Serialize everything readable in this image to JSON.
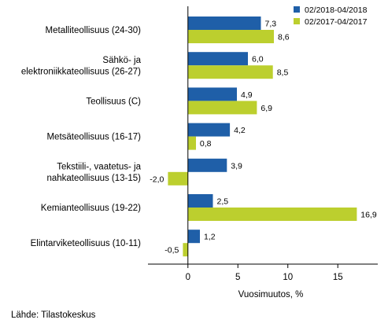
{
  "chart_data": {
    "type": "bar",
    "orientation": "horizontal",
    "categories": [
      [
        "Metalliteollisuus (24-30)"
      ],
      [
        "Sähkö- ja",
        "elektroniikkateollisuus (26-27)"
      ],
      [
        "Teollisuus (C)"
      ],
      [
        "Metsäteollisuus (16-17)"
      ],
      [
        "Tekstiili-, vaatetus- ja",
        "nahkateollisuus (13-15)"
      ],
      [
        "Kemianteollisuus (19-22)"
      ],
      [
        "Elintarviketeollisuus (10-11)"
      ]
    ],
    "series": [
      {
        "name": "02/2018-04/2018",
        "color": "#1f5fa8",
        "values": [
          7.3,
          6.0,
          4.9,
          4.2,
          3.9,
          2.5,
          1.2
        ],
        "value_labels": [
          "7,3",
          "6,0",
          "4,9",
          "4,2",
          "3,9",
          "2,5",
          "1,2"
        ]
      },
      {
        "name": "02/2017-04/2017",
        "color": "#bccf2e",
        "values": [
          8.6,
          8.5,
          6.9,
          0.8,
          -2.0,
          16.9,
          -0.5
        ],
        "value_labels": [
          "8,6",
          "8,5",
          "6,9",
          "0,8",
          "-2,0",
          "16,9",
          "-0,5"
        ]
      }
    ],
    "xlim": [
      -4,
      19
    ],
    "xticks": [
      0,
      5,
      10,
      15
    ],
    "xtick_labels": [
      "0",
      "5",
      "10",
      "15"
    ],
    "xlabel": "Vuosimuutos, %",
    "legend_position": "top-right",
    "grid": false
  },
  "source": "Lähde: Tilastokeskus"
}
